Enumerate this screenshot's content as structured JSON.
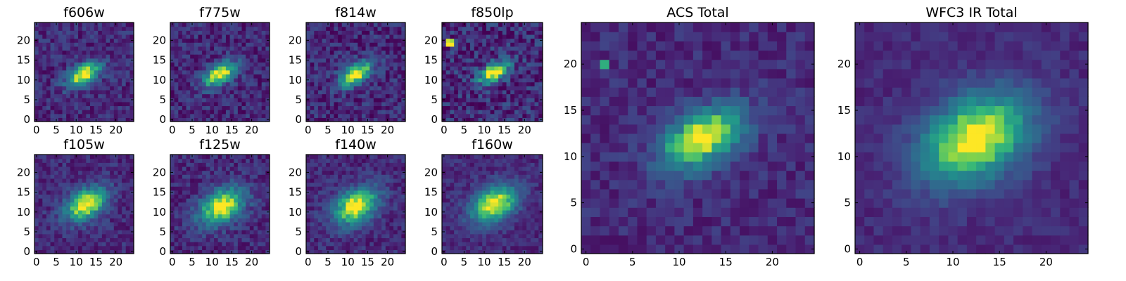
{
  "chart_data": [
    {
      "type": "heatmap",
      "title": "f606w",
      "center": [
        12.0,
        11.5
      ],
      "angle_deg": 30,
      "sigma_major": 3.3,
      "sigma_minor": 1.7,
      "noise": 0.14,
      "xticks": [
        "0",
        "5",
        "10",
        "15",
        "20"
      ],
      "yticks": [
        "0",
        "5",
        "10",
        "15",
        "20"
      ],
      "xlim": [
        0,
        25
      ],
      "ylim": [
        0,
        25
      ],
      "colormap": "viridis",
      "seed": 11
    },
    {
      "type": "heatmap",
      "title": "f775w",
      "center": [
        12.0,
        11.5
      ],
      "angle_deg": 30,
      "sigma_major": 3.3,
      "sigma_minor": 1.7,
      "noise": 0.15,
      "xticks": [
        "0",
        "5",
        "10",
        "15",
        "20"
      ],
      "yticks": [
        "0",
        "5",
        "10",
        "15",
        "20"
      ],
      "xlim": [
        0,
        25
      ],
      "ylim": [
        0,
        25
      ],
      "colormap": "viridis",
      "seed": 23
    },
    {
      "type": "heatmap",
      "title": "f814w",
      "center": [
        12.0,
        11.5
      ],
      "angle_deg": 30,
      "sigma_major": 3.2,
      "sigma_minor": 1.7,
      "noise": 0.16,
      "xticks": [
        "0",
        "5",
        "10",
        "15",
        "20"
      ],
      "yticks": [
        "0",
        "5",
        "10",
        "15",
        "20"
      ],
      "xlim": [
        0,
        25
      ],
      "ylim": [
        0,
        25
      ],
      "colormap": "viridis",
      "seed": 37
    },
    {
      "type": "heatmap",
      "title": "f850lp",
      "center": [
        12.5,
        12.0
      ],
      "angle_deg": 30,
      "sigma_major": 3.0,
      "sigma_minor": 1.6,
      "noise": 0.2,
      "hot_pixels": [
        [
          1,
          19,
          1.0
        ],
        [
          2,
          19,
          1.0
        ],
        [
          1,
          20,
          0.95
        ],
        [
          2,
          20,
          0.9
        ]
      ],
      "xticks": [
        "0",
        "5",
        "10",
        "15",
        "20"
      ],
      "yticks": [
        "0",
        "5",
        "10",
        "15",
        "20"
      ],
      "xlim": [
        0,
        25
      ],
      "ylim": [
        0,
        25
      ],
      "colormap": "viridis",
      "seed": 41
    },
    {
      "type": "heatmap",
      "title": "f105w",
      "center": [
        12.5,
        12.0
      ],
      "angle_deg": 30,
      "sigma_major": 4.0,
      "sigma_minor": 2.5,
      "noise": 0.12,
      "xticks": [
        "0",
        "5",
        "10",
        "15",
        "20"
      ],
      "yticks": [
        "0",
        "5",
        "10",
        "15",
        "20"
      ],
      "xlim": [
        0,
        25
      ],
      "ylim": [
        0,
        25
      ],
      "colormap": "viridis",
      "seed": 53
    },
    {
      "type": "heatmap",
      "title": "f125w",
      "center": [
        12.5,
        11.5
      ],
      "angle_deg": 30,
      "sigma_major": 4.3,
      "sigma_minor": 2.8,
      "noise": 0.13,
      "xticks": [
        "0",
        "5",
        "10",
        "15",
        "20"
      ],
      "yticks": [
        "0",
        "5",
        "10",
        "15",
        "20"
      ],
      "xlim": [
        0,
        25
      ],
      "ylim": [
        0,
        25
      ],
      "colormap": "viridis",
      "seed": 67
    },
    {
      "type": "heatmap",
      "title": "f140w",
      "center": [
        12.0,
        11.5
      ],
      "angle_deg": 30,
      "sigma_major": 4.3,
      "sigma_minor": 2.8,
      "noise": 0.12,
      "xticks": [
        "0",
        "5",
        "10",
        "15",
        "20"
      ],
      "yticks": [
        "0",
        "5",
        "10",
        "15",
        "20"
      ],
      "xlim": [
        0,
        25
      ],
      "ylim": [
        0,
        25
      ],
      "colormap": "viridis",
      "seed": 71
    },
    {
      "type": "heatmap",
      "title": "f160w",
      "center": [
        12.5,
        12.0
      ],
      "angle_deg": 30,
      "sigma_major": 4.3,
      "sigma_minor": 2.9,
      "noise": 0.1,
      "xticks": [
        "0",
        "5",
        "10",
        "15",
        "20"
      ],
      "yticks": [
        "0",
        "5",
        "10",
        "15",
        "20"
      ],
      "xlim": [
        0,
        25
      ],
      "ylim": [
        0,
        25
      ],
      "colormap": "viridis",
      "seed": 83
    },
    {
      "type": "heatmap",
      "title": "ACS Total",
      "center": [
        12.5,
        12.0
      ],
      "angle_deg": 30,
      "sigma_major": 3.4,
      "sigma_minor": 1.9,
      "noise": 0.1,
      "hot_pixels": [
        [
          2,
          20,
          0.72
        ]
      ],
      "xticks": [
        "0",
        "5",
        "10",
        "15",
        "20"
      ],
      "yticks": [
        "0",
        "5",
        "10",
        "15",
        "20"
      ],
      "xlim": [
        0,
        25
      ],
      "ylim": [
        0,
        25
      ],
      "colormap": "viridis",
      "seed": 97
    },
    {
      "type": "heatmap",
      "title": "WFC3 IR Total",
      "center": [
        12.5,
        12.0
      ],
      "angle_deg": 30,
      "sigma_major": 4.4,
      "sigma_minor": 3.0,
      "noise": 0.07,
      "xticks": [
        "0",
        "5",
        "10",
        "15",
        "20"
      ],
      "yticks": [
        "0",
        "5",
        "10",
        "15",
        "20"
      ],
      "xlim": [
        0,
        25
      ],
      "ylim": [
        0,
        25
      ],
      "colormap": "viridis",
      "seed": 101
    }
  ]
}
